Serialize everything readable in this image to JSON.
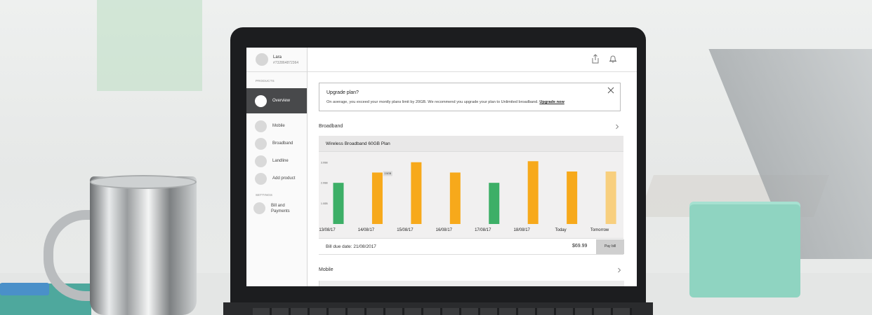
{
  "sidebar": {
    "user": {
      "name": "Lara",
      "id": "#732864872364"
    },
    "products_label": "PRODUCTS",
    "settings_label": "SETTINGS",
    "items": [
      {
        "label": "Overview",
        "active": true
      },
      {
        "label": "Mobile"
      },
      {
        "label": "Broadband"
      },
      {
        "label": "Landline"
      },
      {
        "label": "Add product"
      }
    ],
    "settings_items": [
      {
        "label": "Bill and Payments"
      }
    ]
  },
  "topbar": {
    "icons": [
      "share-icon",
      "bell-icon"
    ]
  },
  "banner": {
    "title": "Upgrade plan?",
    "text": "On average, you exceed your montly plans limit by 20GB. We recommend you upgrade your plan to Unlimited broadband.",
    "link": "Upgrade now"
  },
  "broadband": {
    "section_title": "Broadband",
    "card_title": "Wireless Broadband 60GB Plan",
    "bill_due": "Bill due date: 21/08/2017",
    "amount": "$69.99",
    "pay_label": "Pay bill"
  },
  "mobile": {
    "section_title": "Mobile"
  },
  "colors": {
    "green": "#3daf67",
    "orange": "#f7a91b",
    "light_orange": "#f8cf7e"
  },
  "chart_data": {
    "type": "bar",
    "yticks": [
      "1.0GB",
      "2.0GB",
      "3.0GB"
    ],
    "ylim": [
      0,
      3.4
    ],
    "categories": [
      "13/08/17",
      "14/08/17",
      "15/08/17",
      "16/08/17",
      "17/08/17",
      "18/08/17",
      "Today",
      "Tomorrow"
    ],
    "values": [
      2.0,
      2.5,
      3.0,
      2.5,
      2.0,
      3.05,
      2.55,
      2.55
    ],
    "colors": [
      "#3daf67",
      "#f7a91b",
      "#f7a91b",
      "#f7a91b",
      "#3daf67",
      "#f7a91b",
      "#f7a91b",
      "#f8cf7e"
    ],
    "annotation": {
      "index": 1,
      "text": "2.5GB"
    }
  }
}
